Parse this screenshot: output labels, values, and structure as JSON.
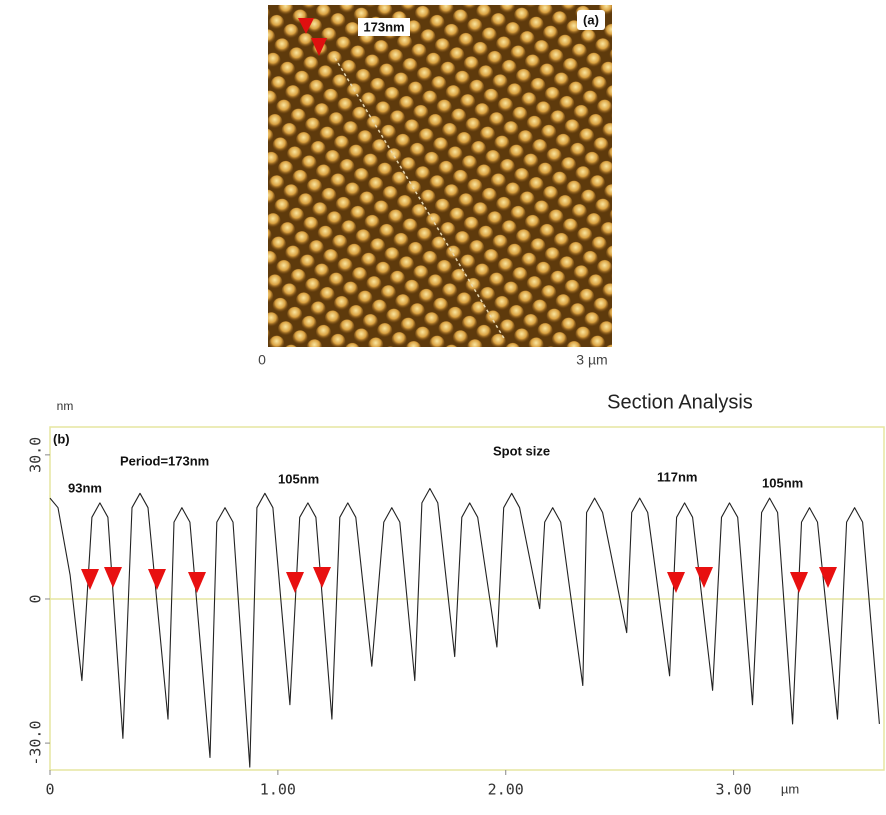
{
  "image_panel": {
    "label": "(a)",
    "marker_label": "173nm",
    "axis_start": "0",
    "axis_end": "3 µm"
  },
  "chart_data": {
    "type": "line",
    "title": "Section Analysis",
    "y_unit": "nm",
    "x_unit": "µm",
    "annotations": [
      "(b)",
      "Period=173nm",
      "93nm",
      "105nm",
      "Spot size",
      "117nm",
      "105nm"
    ],
    "xlim": [
      0,
      3.66
    ],
    "ylim": [
      -35.6,
      35.8
    ],
    "xticks": [
      0,
      {
        "value": 1,
        "label": "1.00"
      },
      {
        "value": 2,
        "label": "2.00"
      },
      {
        "value": 3,
        "label": "3.00"
      }
    ],
    "yticks": [
      {
        "value": 30,
        "label": "30.0"
      },
      0,
      {
        "value": -30,
        "label": "-30.0"
      }
    ],
    "zero_line": true,
    "series": [
      {
        "color": "#222222",
        "x": [
          0.0,
          0.035,
          0.088,
          0.14,
          0.184,
          0.219,
          0.254,
          0.32,
          0.36,
          0.395,
          0.43,
          0.518,
          0.544,
          0.579,
          0.614,
          0.702,
          0.732,
          0.768,
          0.803,
          0.877,
          0.908,
          0.943,
          0.978,
          1.053,
          1.096,
          1.132,
          1.167,
          1.237,
          1.272,
          1.307,
          1.342,
          1.412,
          1.465,
          1.5,
          1.535,
          1.601,
          1.632,
          1.667,
          1.702,
          1.776,
          1.807,
          1.842,
          1.877,
          1.961,
          1.991,
          2.026,
          2.061,
          2.149,
          2.171,
          2.206,
          2.241,
          2.338,
          2.355,
          2.39,
          2.425,
          2.531,
          2.553,
          2.588,
          2.623,
          2.719,
          2.75,
          2.785,
          2.82,
          2.908,
          2.947,
          2.982,
          3.018,
          3.083,
          3.123,
          3.158,
          3.193,
          3.259,
          3.298,
          3.333,
          3.368,
          3.456,
          3.496,
          3.531,
          3.566,
          3.64
        ],
        "values": [
          21,
          19,
          5,
          -17,
          17,
          20,
          17,
          -29,
          19,
          22,
          19,
          -25,
          16,
          19,
          16,
          -33,
          16,
          19,
          16,
          -35,
          19,
          22,
          19,
          -22,
          17,
          20,
          17,
          -25,
          17,
          20,
          17,
          -14,
          16,
          19,
          16,
          -17,
          20,
          23,
          20,
          -12,
          17,
          20,
          17,
          -10,
          19,
          22,
          19,
          -2,
          16,
          19,
          16,
          -18,
          18,
          21,
          18,
          -7,
          18,
          21,
          18,
          -16,
          17,
          20,
          17,
          -19,
          17,
          20,
          17,
          -22,
          18,
          21,
          18,
          -26,
          16,
          19,
          16,
          -25,
          16,
          19,
          16,
          -26
        ]
      }
    ]
  }
}
